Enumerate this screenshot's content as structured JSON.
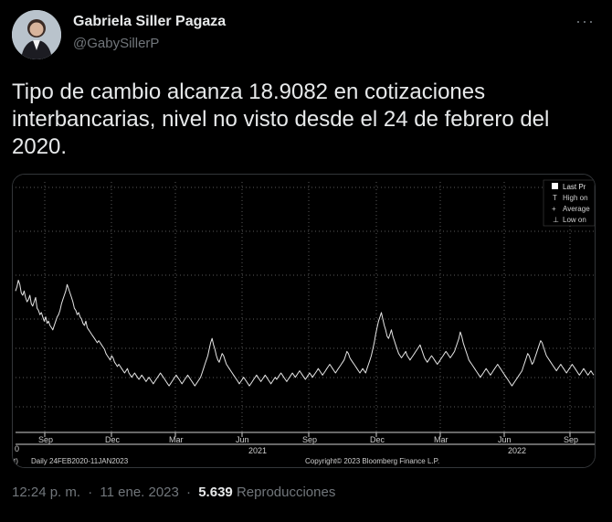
{
  "author": {
    "name": "Gabriela Siller Pagaza",
    "handle": "@GabySillerP"
  },
  "more_icon": "more-horizontal-icon",
  "tweet": {
    "text": "Tipo de cambio alcanza 18.9082 en cotizaciones\ninterbancarias, nivel no visto desde el 24 de febrero del\n2020."
  },
  "chart": {
    "legend": [
      "Last Pr",
      "High on",
      "Average",
      "Low on"
    ],
    "footer_left": "Daily 24FEB2020-11JAN2023",
    "footer_right": "Copyright© 2023 Bloomberg Finance L.P.",
    "edge_label_left": "0",
    "edge_label_footer": "t)"
  },
  "chart_data": {
    "type": "line",
    "title": "",
    "x_tick_labels": [
      "Sep",
      "Dec",
      "Mar",
      "Jun",
      "Sep",
      "Dec",
      "Mar",
      "Jun",
      "Sep"
    ],
    "year_labels": [
      "2021",
      "2022"
    ],
    "series": [
      {
        "values": [
          52,
          54,
          57,
          55,
          51,
          50,
          52,
          49,
          47,
          48,
          50,
          46,
          45,
          47,
          49,
          44,
          43,
          41,
          42,
          40,
          38,
          40,
          37,
          38,
          36,
          35,
          34,
          36,
          38,
          40,
          41,
          43,
          46,
          48,
          50,
          52,
          55,
          53,
          51,
          49,
          47,
          44,
          43,
          41,
          42,
          40,
          39,
          37,
          36,
          38,
          35,
          34,
          33,
          32,
          31,
          30,
          29,
          28,
          29,
          28,
          27,
          26,
          25,
          23,
          22,
          21,
          20,
          22,
          21,
          19,
          18,
          17,
          18,
          17,
          16,
          15,
          14,
          15,
          16,
          14,
          13,
          12,
          13,
          14,
          13,
          12,
          11,
          12,
          13,
          12,
          11,
          10,
          11,
          12,
          11,
          10,
          9,
          10,
          11,
          12,
          13,
          14,
          13,
          12,
          11,
          10,
          9,
          8,
          9,
          10,
          11,
          12,
          13,
          12,
          11,
          10,
          9,
          10,
          11,
          12,
          13,
          12,
          11,
          10,
          9,
          8,
          9,
          10,
          11,
          12,
          14,
          16,
          18,
          20,
          22,
          25,
          28,
          30,
          27,
          25,
          22,
          20,
          19,
          21,
          23,
          22,
          20,
          18,
          17,
          16,
          15,
          14,
          13,
          12,
          11,
          10,
          9,
          10,
          11,
          12,
          11,
          10,
          9,
          8,
          9,
          10,
          11,
          12,
          13,
          12,
          11,
          10,
          11,
          12,
          13,
          12,
          11,
          10,
          9,
          10,
          11,
          12,
          11,
          12,
          13,
          14,
          13,
          12,
          11,
          10,
          11,
          12,
          13,
          14,
          13,
          12,
          13,
          14,
          15,
          14,
          13,
          12,
          11,
          12,
          13,
          14,
          13,
          12,
          13,
          14,
          15,
          16,
          15,
          14,
          13,
          14,
          15,
          16,
          17,
          18,
          17,
          16,
          15,
          14,
          15,
          16,
          17,
          18,
          19,
          20,
          22,
          24,
          23,
          21,
          20,
          19,
          18,
          17,
          16,
          15,
          14,
          15,
          16,
          15,
          14,
          16,
          18,
          20,
          22,
          25,
          28,
          32,
          35,
          38,
          40,
          42,
          39,
          36,
          34,
          31,
          30,
          32,
          34,
          31,
          29,
          27,
          25,
          23,
          22,
          21,
          22,
          23,
          24,
          22,
          21,
          20,
          21,
          22,
          23,
          24,
          25,
          26,
          27,
          25,
          23,
          21,
          20,
          19,
          20,
          21,
          22,
          21,
          20,
          19,
          18,
          19,
          20,
          21,
          22,
          23,
          24,
          23,
          22,
          21,
          22,
          23,
          24,
          26,
          28,
          30,
          33,
          31,
          28,
          26,
          24,
          22,
          20,
          19,
          18,
          17,
          16,
          15,
          14,
          13,
          12,
          13,
          14,
          15,
          16,
          15,
          14,
          13,
          14,
          15,
          16,
          17,
          18,
          17,
          16,
          15,
          14,
          13,
          12,
          11,
          10,
          9,
          8,
          9,
          10,
          11,
          12,
          13,
          14,
          15,
          17,
          19,
          21,
          23,
          22,
          20,
          18,
          19,
          21,
          23,
          25,
          27,
          29,
          28,
          26,
          24,
          22,
          21,
          20,
          19,
          18,
          17,
          16,
          15,
          16,
          17,
          18,
          17,
          16,
          15,
          14,
          15,
          16,
          17,
          18,
          17,
          16,
          15,
          14,
          13,
          14,
          15,
          16,
          15,
          14,
          13,
          14,
          15,
          14,
          13
        ]
      }
    ],
    "ylim": [
      0,
      100
    ]
  },
  "metadata": {
    "time": "12:24 p. m.",
    "separator": "·",
    "date": "11 ene. 2023",
    "views_count": "5.639",
    "views_label": "Reproducciones"
  }
}
